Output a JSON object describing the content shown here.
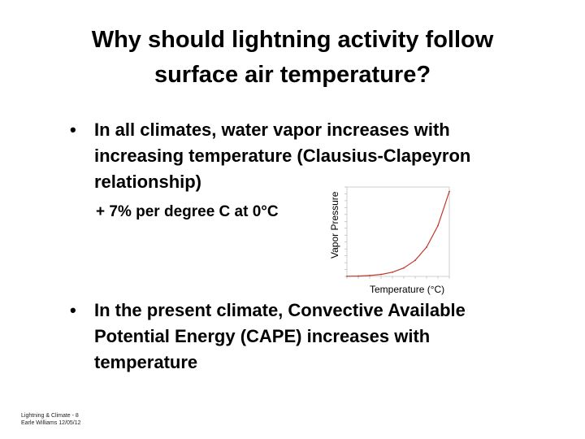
{
  "slide": {
    "title_line1": "Why should lightning activity follow",
    "title_line2": "surface air temperature?",
    "bullet1": "In all climates, water vapor increases with increasing temperature (Clausius-Clapeyron relationship)",
    "sub_bullet": "+ 7% per degree C at 0°C",
    "bullet2": "In the present climate, Convective Available Potential Energy (CAPE) increases with temperature",
    "bullet_symbol": "•",
    "footer_line1": "Lightning & Climate - 8",
    "footer_line2": "Earle Williams 12/05/12"
  },
  "chart_data": {
    "type": "line",
    "xlabel": "Temperature (°C)",
    "ylabel": "Vapor Pressure",
    "x": [
      -40,
      -30,
      -20,
      -10,
      0,
      10,
      20,
      30,
      40,
      50
    ],
    "y": [
      0.19,
      0.51,
      1.25,
      2.86,
      6.11,
      12.3,
      23.4,
      42.5,
      73.8,
      123.4
    ],
    "xlim": [
      -40,
      50
    ],
    "ylim": [
      0,
      130
    ],
    "grid": false
  }
}
